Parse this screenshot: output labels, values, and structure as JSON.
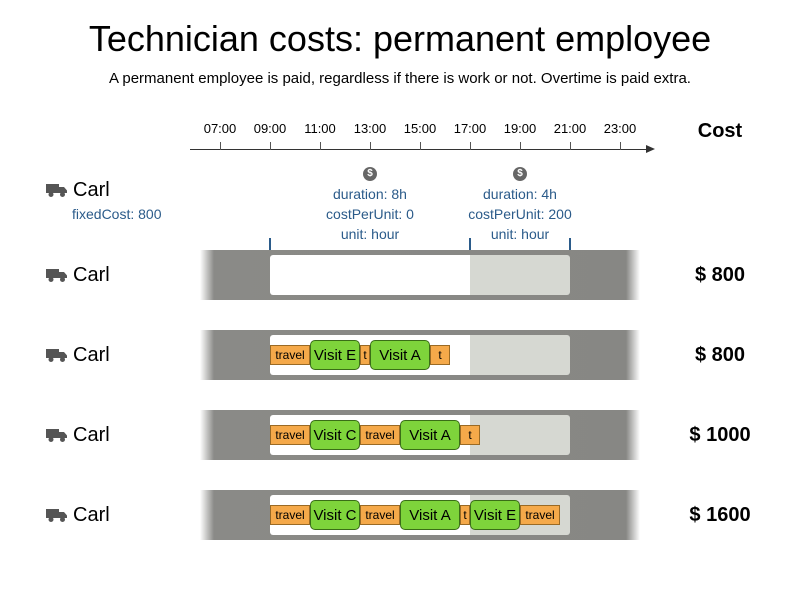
{
  "title": "Technician costs: permanent employee",
  "subtitle": "A permanent employee is paid, regardless if there is work or not. Overtime is paid extra.",
  "cost_header": "Cost",
  "timeline": {
    "ticks": [
      "07:00",
      "09:00",
      "11:00",
      "13:00",
      "15:00",
      "17:00",
      "19:00",
      "21:00",
      "23:00"
    ]
  },
  "resource": {
    "name": "Carl",
    "icon": "truck-icon",
    "fixed_cost": "fixedCost: 800"
  },
  "periods": [
    {
      "icon": "dollar-icon",
      "symbol": "$",
      "duration": "duration: 8h",
      "cost_per_unit": "costPerUnit: 0",
      "unit": "unit: hour"
    },
    {
      "icon": "dollar-icon",
      "symbol": "$",
      "duration": "duration: 4h",
      "cost_per_unit": "costPerUnit: 200",
      "unit": "unit: hour"
    }
  ],
  "rows": [
    {
      "name": "Carl",
      "cost": "$ 800",
      "jobs": []
    },
    {
      "name": "Carl",
      "cost": "$ 800",
      "jobs": [
        {
          "type": "travel",
          "label": "travel"
        },
        {
          "type": "visit",
          "label": "Visit E"
        },
        {
          "type": "travel",
          "label": "t"
        },
        {
          "type": "visit",
          "label": "Visit A"
        },
        {
          "type": "travel",
          "label": "t"
        }
      ]
    },
    {
      "name": "Carl",
      "cost": "$ 1000",
      "jobs": [
        {
          "type": "travel",
          "label": "travel"
        },
        {
          "type": "visit",
          "label": "Visit C"
        },
        {
          "type": "travel",
          "label": "travel"
        },
        {
          "type": "visit",
          "label": "Visit A"
        },
        {
          "type": "travel",
          "label": "t"
        }
      ]
    },
    {
      "name": "Carl",
      "cost": "$ 1600",
      "jobs": [
        {
          "type": "travel",
          "label": "travel"
        },
        {
          "type": "visit",
          "label": "Visit C"
        },
        {
          "type": "travel",
          "label": "travel"
        },
        {
          "type": "visit",
          "label": "Visit A"
        },
        {
          "type": "travel",
          "label": "t"
        },
        {
          "type": "visit",
          "label": "Visit E"
        },
        {
          "type": "travel",
          "label": "travel"
        }
      ]
    }
  ],
  "colors": {
    "travel": "#f5a94a",
    "visit": "#7ed43b",
    "overtime": "#d6d8d2",
    "info_text": "#2b5b8a"
  }
}
